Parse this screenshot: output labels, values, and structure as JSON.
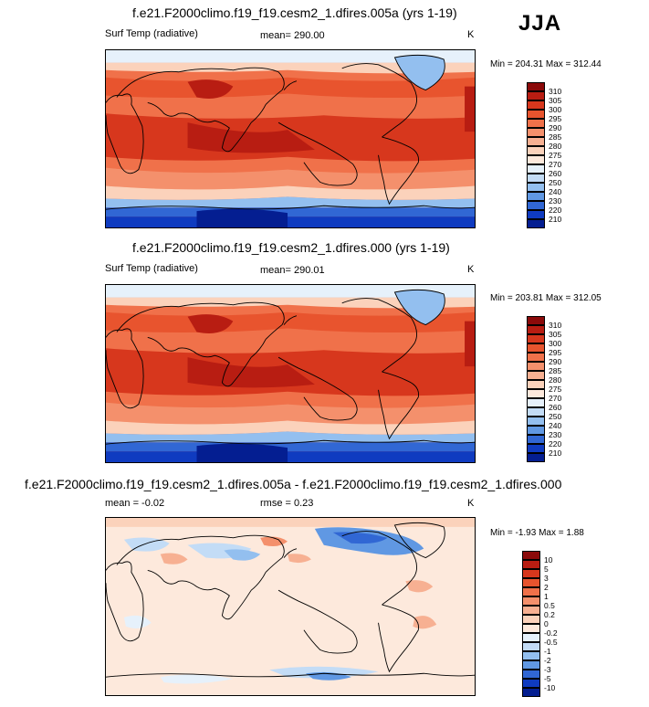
{
  "season": "JJA",
  "panels": [
    {
      "id": "p1",
      "title": "f.e21.F2000climo.f19_f19.cesm2_1.dfires.005a (yrs 1-19)",
      "left_label": "Surf Temp (radiative)",
      "center_label": "mean= 290.00",
      "units": "K",
      "minmax": "Min = 204.31 Max = 312.44",
      "colorbar_labels": [
        "310",
        "305",
        "300",
        "295",
        "290",
        "285",
        "280",
        "275",
        "270",
        "260",
        "250",
        "240",
        "230",
        "220",
        "210"
      ],
      "colorbar_colors": [
        "#8b0a0a",
        "#b81d12",
        "#d7371d",
        "#e8542e",
        "#f0714a",
        "#f4906c",
        "#f7b092",
        "#fbd2bb",
        "#fde9dc",
        "#e6f1fb",
        "#c3dcf6",
        "#93bfef",
        "#6098e3",
        "#3167d4",
        "#0f3bc0",
        "#041e91"
      ]
    },
    {
      "id": "p2",
      "title": "f.e21.F2000climo.f19_f19.cesm2_1.dfires.000 (yrs 1-19)",
      "left_label": "Surf Temp (radiative)",
      "center_label": "mean= 290.01",
      "units": "K",
      "minmax": "Min = 203.81 Max = 312.05",
      "colorbar_labels": [
        "310",
        "305",
        "300",
        "295",
        "290",
        "285",
        "280",
        "275",
        "270",
        "260",
        "250",
        "240",
        "230",
        "220",
        "210"
      ],
      "colorbar_colors": [
        "#8b0a0a",
        "#b81d12",
        "#d7371d",
        "#e8542e",
        "#f0714a",
        "#f4906c",
        "#f7b092",
        "#fbd2bb",
        "#fde9dc",
        "#e6f1fb",
        "#c3dcf6",
        "#93bfef",
        "#6098e3",
        "#3167d4",
        "#0f3bc0",
        "#041e91"
      ]
    },
    {
      "id": "p3",
      "title": "f.e21.F2000climo.f19_f19.cesm2_1.dfires.005a - f.e21.F2000climo.f19_f19.cesm2_1.dfires.000",
      "left_label": "mean =  -0.02",
      "center_label": "rmse =  0.23",
      "units": "K",
      "minmax": "Min =  -1.93 Max =  1.88",
      "colorbar_labels": [
        "10",
        "5",
        "3",
        "2",
        "1",
        "0.5",
        "0.2",
        "0",
        "-0.2",
        "-0.5",
        "-1",
        "-2",
        "-3",
        "-5",
        "-10"
      ],
      "colorbar_colors": [
        "#8b0a0a",
        "#b81d12",
        "#d7371d",
        "#e8542e",
        "#f0714a",
        "#f4906c",
        "#f7b092",
        "#fbd2bb",
        "#fde9dc",
        "#e6f1fb",
        "#c3dcf6",
        "#93bfef",
        "#6098e3",
        "#3167d4",
        "#0f3bc0",
        "#041e91"
      ]
    }
  ]
}
